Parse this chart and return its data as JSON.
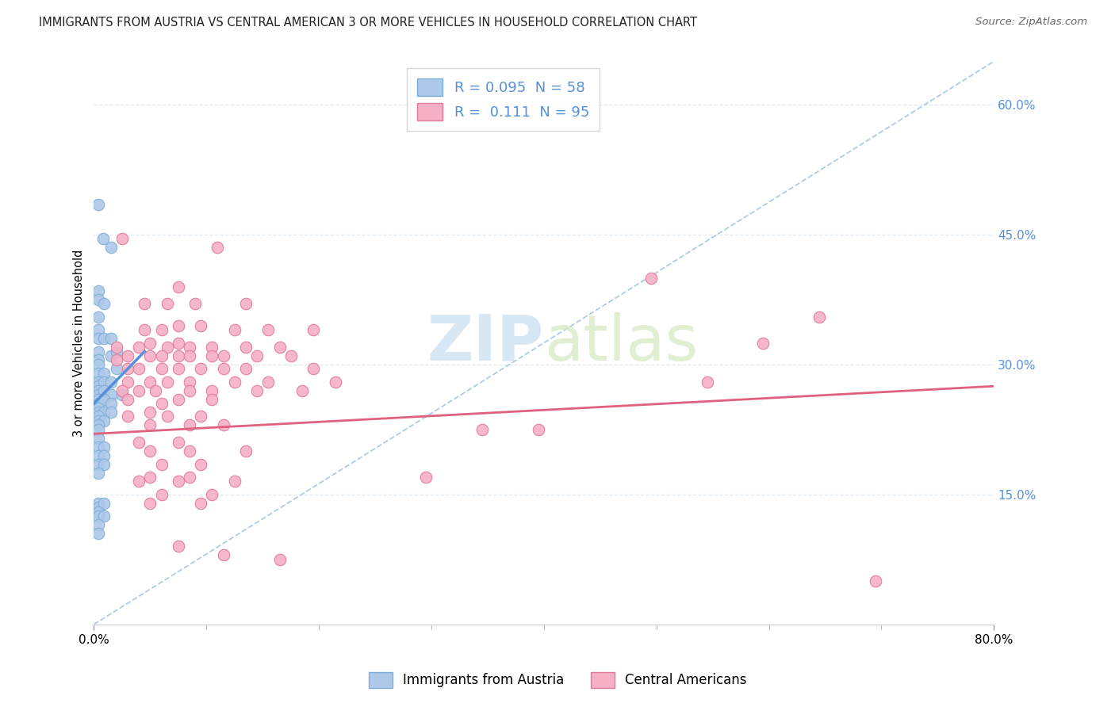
{
  "title": "IMMIGRANTS FROM AUSTRIA VS CENTRAL AMERICAN 3 OR MORE VEHICLES IN HOUSEHOLD CORRELATION CHART",
  "source": "Source: ZipAtlas.com",
  "ylabel": "3 or more Vehicles in Household",
  "r1": 0.095,
  "n1": 58,
  "r2": 0.111,
  "n2": 95,
  "color_blue_fill": "#adc8e8",
  "color_blue_edge": "#7aaed6",
  "color_pink_fill": "#f5b0c5",
  "color_pink_edge": "#e07898",
  "color_line_blue": "#5590d8",
  "color_line_pink": "#e06080",
  "color_dash": "#aacce8",
  "color_grid": "#e0e8f0",
  "color_axis_blue": "#5590d8",
  "watermark_zip": "ZIP",
  "watermark_atlas": "atlas",
  "legend_label1": "Immigrants from Austria",
  "legend_label2": "Central Americans",
  "xmin": 0,
  "xmax": 80,
  "ymin": 0,
  "ymax": 65,
  "ytick_vals": [
    15,
    30,
    45,
    60
  ],
  "ytick_labels": [
    "15.0%",
    "30.0%",
    "45.0%",
    "60.0%"
  ],
  "xtick_minor_count": 8,
  "blue_line_x": [
    0.0,
    4.5
  ],
  "blue_line_y": [
    25.5,
    31.5
  ],
  "pink_line_x": [
    0.0,
    80.0
  ],
  "pink_line_y": [
    22.0,
    27.5
  ],
  "blue_points": [
    [
      0.4,
      48.5
    ],
    [
      0.8,
      44.5
    ],
    [
      1.5,
      43.5
    ],
    [
      0.4,
      38.5
    ],
    [
      0.4,
      37.5
    ],
    [
      0.9,
      37.0
    ],
    [
      0.4,
      35.5
    ],
    [
      0.4,
      34.0
    ],
    [
      0.4,
      33.0
    ],
    [
      0.9,
      33.0
    ],
    [
      1.5,
      33.0
    ],
    [
      0.4,
      31.5
    ],
    [
      0.4,
      30.5
    ],
    [
      1.5,
      31.0
    ],
    [
      2.0,
      31.5
    ],
    [
      0.4,
      30.0
    ],
    [
      0.4,
      29.0
    ],
    [
      0.9,
      29.0
    ],
    [
      2.0,
      29.5
    ],
    [
      0.4,
      28.0
    ],
    [
      0.4,
      27.5
    ],
    [
      0.9,
      28.0
    ],
    [
      1.5,
      28.0
    ],
    [
      0.4,
      27.0
    ],
    [
      0.4,
      26.5
    ],
    [
      0.9,
      27.0
    ],
    [
      1.5,
      26.5
    ],
    [
      2.5,
      26.5
    ],
    [
      0.4,
      26.0
    ],
    [
      0.4,
      25.5
    ],
    [
      0.9,
      26.0
    ],
    [
      1.5,
      25.5
    ],
    [
      0.4,
      25.0
    ],
    [
      0.4,
      24.5
    ],
    [
      0.9,
      24.5
    ],
    [
      1.5,
      24.5
    ],
    [
      0.4,
      24.0
    ],
    [
      0.4,
      23.5
    ],
    [
      0.9,
      23.5
    ],
    [
      0.4,
      23.0
    ],
    [
      0.4,
      22.5
    ],
    [
      0.4,
      21.5
    ],
    [
      0.4,
      20.5
    ],
    [
      0.9,
      20.5
    ],
    [
      0.4,
      19.5
    ],
    [
      0.9,
      19.5
    ],
    [
      0.4,
      18.5
    ],
    [
      0.9,
      18.5
    ],
    [
      0.4,
      17.5
    ],
    [
      0.4,
      14.0
    ],
    [
      0.4,
      13.5
    ],
    [
      0.9,
      14.0
    ],
    [
      0.4,
      13.0
    ],
    [
      0.4,
      12.5
    ],
    [
      0.9,
      12.5
    ],
    [
      0.4,
      11.5
    ],
    [
      0.4,
      10.5
    ]
  ],
  "pink_points": [
    [
      2.5,
      44.5
    ],
    [
      11.0,
      43.5
    ],
    [
      7.5,
      39.0
    ],
    [
      4.5,
      37.0
    ],
    [
      6.5,
      37.0
    ],
    [
      9.0,
      37.0
    ],
    [
      13.5,
      37.0
    ],
    [
      4.5,
      34.0
    ],
    [
      6.0,
      34.0
    ],
    [
      7.5,
      34.5
    ],
    [
      9.5,
      34.5
    ],
    [
      12.5,
      34.0
    ],
    [
      15.5,
      34.0
    ],
    [
      19.5,
      34.0
    ],
    [
      2.0,
      32.0
    ],
    [
      4.0,
      32.0
    ],
    [
      5.0,
      32.5
    ],
    [
      6.5,
      32.0
    ],
    [
      7.5,
      32.5
    ],
    [
      8.5,
      32.0
    ],
    [
      10.5,
      32.0
    ],
    [
      13.5,
      32.0
    ],
    [
      16.5,
      32.0
    ],
    [
      2.0,
      30.5
    ],
    [
      3.0,
      31.0
    ],
    [
      5.0,
      31.0
    ],
    [
      6.0,
      31.0
    ],
    [
      7.5,
      31.0
    ],
    [
      8.5,
      31.0
    ],
    [
      10.5,
      31.0
    ],
    [
      11.5,
      31.0
    ],
    [
      14.5,
      31.0
    ],
    [
      17.5,
      31.0
    ],
    [
      3.0,
      29.5
    ],
    [
      4.0,
      29.5
    ],
    [
      6.0,
      29.5
    ],
    [
      7.5,
      29.5
    ],
    [
      9.5,
      29.5
    ],
    [
      11.5,
      29.5
    ],
    [
      13.5,
      29.5
    ],
    [
      19.5,
      29.5
    ],
    [
      3.0,
      28.0
    ],
    [
      5.0,
      28.0
    ],
    [
      6.5,
      28.0
    ],
    [
      8.5,
      28.0
    ],
    [
      12.5,
      28.0
    ],
    [
      15.5,
      28.0
    ],
    [
      21.5,
      28.0
    ],
    [
      2.5,
      27.0
    ],
    [
      4.0,
      27.0
    ],
    [
      5.5,
      27.0
    ],
    [
      8.5,
      27.0
    ],
    [
      10.5,
      27.0
    ],
    [
      14.5,
      27.0
    ],
    [
      18.5,
      27.0
    ],
    [
      3.0,
      26.0
    ],
    [
      6.0,
      25.5
    ],
    [
      7.5,
      26.0
    ],
    [
      10.5,
      26.0
    ],
    [
      3.0,
      24.0
    ],
    [
      5.0,
      24.5
    ],
    [
      6.5,
      24.0
    ],
    [
      9.5,
      24.0
    ],
    [
      5.0,
      23.0
    ],
    [
      8.5,
      23.0
    ],
    [
      11.5,
      23.0
    ],
    [
      4.0,
      21.0
    ],
    [
      7.5,
      21.0
    ],
    [
      5.0,
      20.0
    ],
    [
      8.5,
      20.0
    ],
    [
      13.5,
      20.0
    ],
    [
      6.0,
      18.5
    ],
    [
      9.5,
      18.5
    ],
    [
      5.0,
      17.0
    ],
    [
      8.5,
      17.0
    ],
    [
      4.0,
      16.5
    ],
    [
      7.5,
      16.5
    ],
    [
      12.5,
      16.5
    ],
    [
      6.0,
      15.0
    ],
    [
      10.5,
      15.0
    ],
    [
      5.0,
      14.0
    ],
    [
      9.5,
      14.0
    ],
    [
      7.5,
      9.0
    ],
    [
      11.5,
      8.0
    ],
    [
      16.5,
      7.5
    ],
    [
      29.5,
      17.0
    ],
    [
      34.5,
      22.5
    ],
    [
      39.5,
      22.5
    ],
    [
      49.5,
      40.0
    ],
    [
      54.5,
      28.0
    ],
    [
      59.5,
      32.5
    ],
    [
      64.5,
      35.5
    ],
    [
      69.5,
      5.0
    ]
  ]
}
